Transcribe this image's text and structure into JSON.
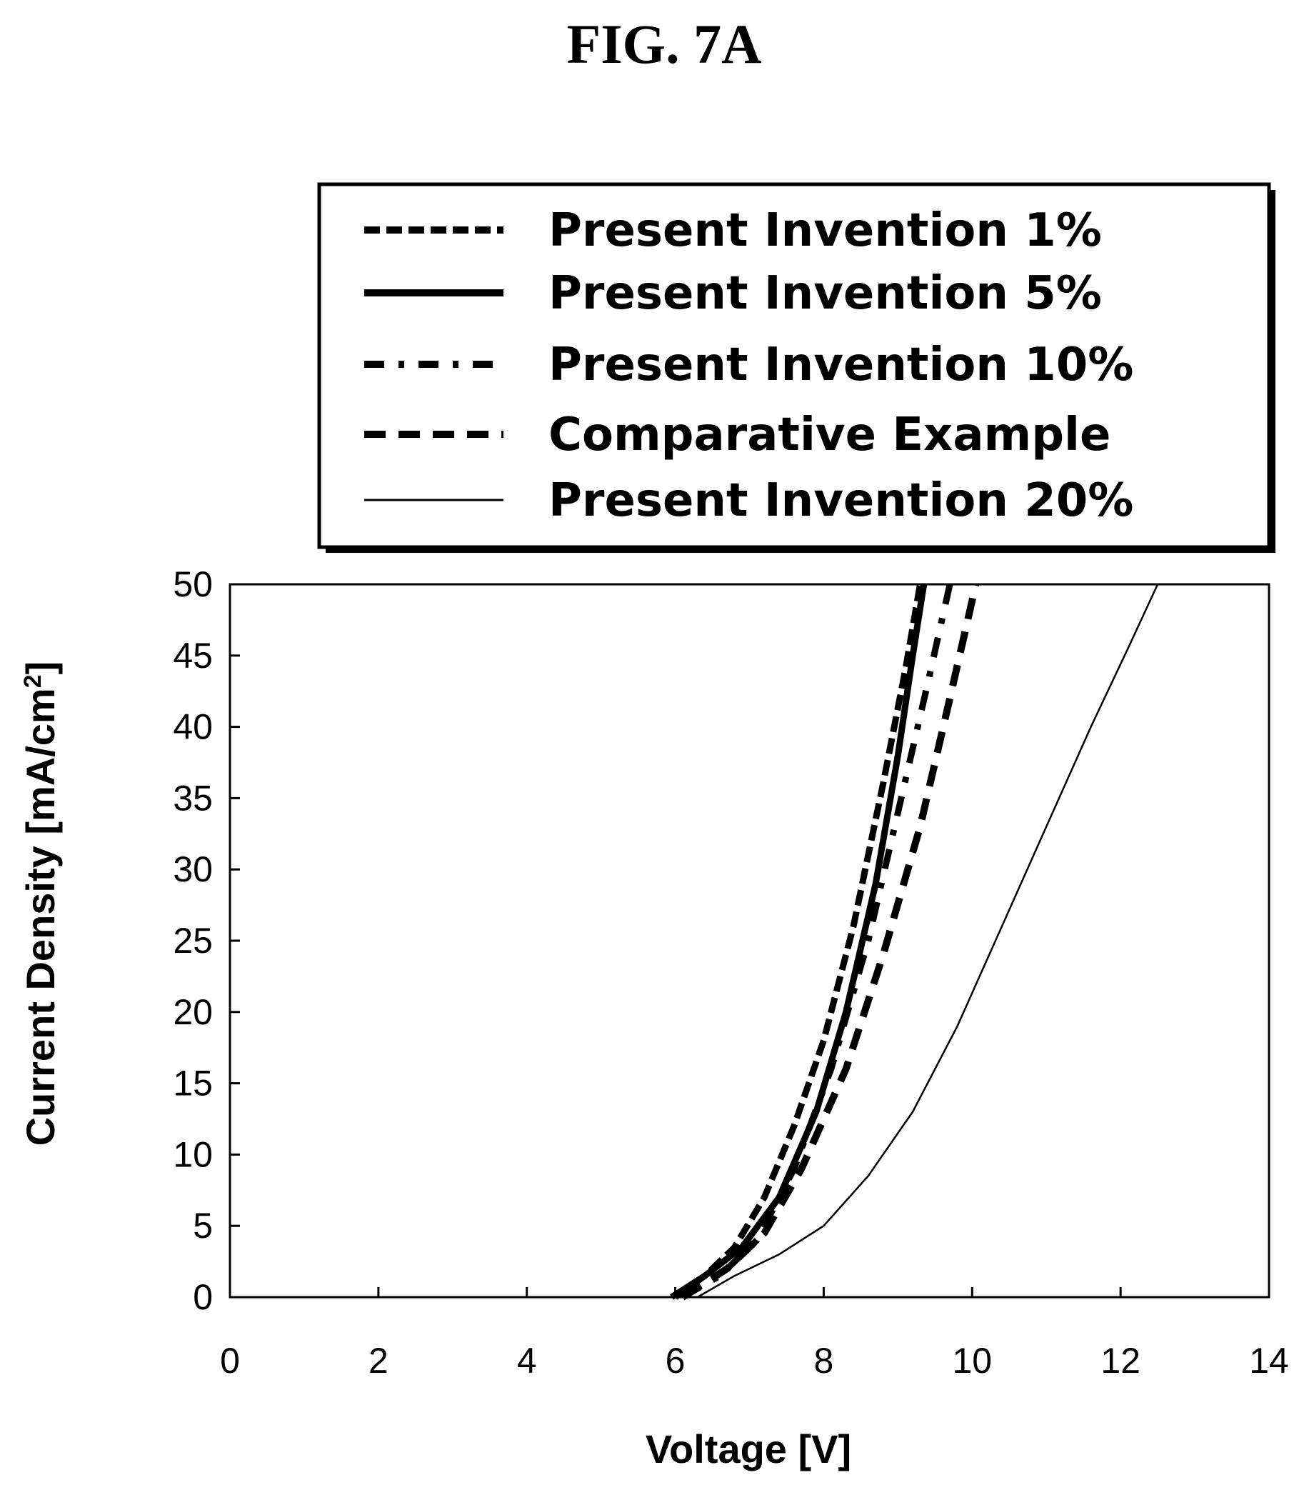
{
  "figure_title": "FIG. 7A",
  "chart_data": {
    "type": "line",
    "title": "",
    "xlabel": "Voltage [V]",
    "ylabel": "Current Density [mA/cm",
    "ylabel_superscript": "2",
    "ylabel_suffix": "]",
    "xlim": [
      0,
      14
    ],
    "ylim": [
      0,
      50
    ],
    "x_ticks": [
      0,
      2,
      4,
      6,
      8,
      10,
      12,
      14
    ],
    "y_ticks": [
      0,
      5,
      10,
      15,
      20,
      25,
      30,
      35,
      40,
      45,
      50
    ],
    "grid": false,
    "legend_position": "top",
    "series": [
      {
        "name": "Present Invention 1%",
        "style": "short-dash",
        "x": [
          6.0,
          6.4,
          6.8,
          7.2,
          7.6,
          8.0,
          8.4,
          8.8,
          9.1,
          9.3
        ],
        "y": [
          0,
          1.5,
          3.5,
          7,
          12,
          18,
          26,
          36,
          44,
          50
        ]
      },
      {
        "name": "Present Invention 5%",
        "style": "solid-thick",
        "x": [
          5.95,
          6.4,
          6.9,
          7.4,
          7.9,
          8.3,
          8.7,
          9.0,
          9.2,
          9.35
        ],
        "y": [
          0,
          1.5,
          3.5,
          7,
          13,
          20,
          29,
          38,
          45,
          50
        ]
      },
      {
        "name": "Present Invention 10%",
        "style": "dash-dot",
        "x": [
          6.1,
          6.6,
          7.1,
          7.6,
          8.1,
          8.6,
          9.0,
          9.4,
          9.7
        ],
        "y": [
          0,
          1.5,
          4,
          9,
          16,
          25,
          34,
          43,
          50
        ]
      },
      {
        "name": "Comparative Example",
        "style": "long-dash",
        "x": [
          6.1,
          6.7,
          7.2,
          7.7,
          8.3,
          8.8,
          9.3,
          9.7,
          10.05
        ],
        "y": [
          0,
          2,
          4.5,
          9,
          16,
          24,
          33,
          42,
          50
        ]
      },
      {
        "name": "Present Invention 20%",
        "style": "solid-thin",
        "x": [
          6.3,
          6.8,
          7.4,
          8.0,
          8.6,
          9.2,
          9.8,
          10.4,
          11.0,
          11.6,
          12.1,
          12.5
        ],
        "y": [
          0,
          1.5,
          3,
          5,
          8.5,
          13,
          19,
          26,
          33,
          40,
          45.5,
          50
        ]
      }
    ]
  }
}
